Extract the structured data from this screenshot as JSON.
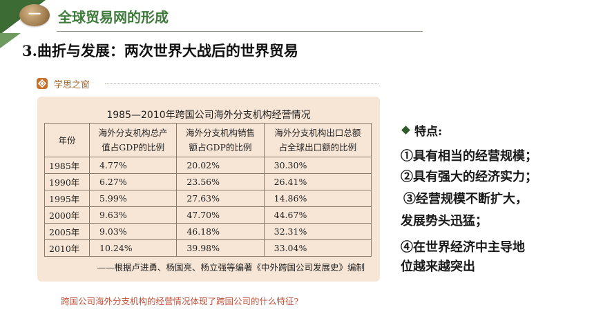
{
  "header": {
    "badge": "一",
    "section_title": "全球贸易网的形成",
    "page_title": "3.曲折与发展：两次世界大战后的世界贸易"
  },
  "window": {
    "icon": "lattice-window-icon",
    "label": "学思之窗"
  },
  "table": {
    "title": "1985—2010年跨国公司海外分支机构经营情况",
    "headers": [
      [
        "年份"
      ],
      [
        "海外分支机构总产",
        "值占GDP的比例"
      ],
      [
        "海外分支机构销售",
        "额占GDP的比例"
      ],
      [
        "海外分支机构出口总额",
        "占全球出口额的比例"
      ]
    ],
    "rows": [
      [
        "1985年",
        "4.77%",
        "20.02%",
        "30.30%"
      ],
      [
        "1990年",
        "6.27%",
        "23.56%",
        "26.41%"
      ],
      [
        "1995年",
        "5.99%",
        "27.63%",
        "14.86%"
      ],
      [
        "2000年",
        "9.63%",
        "47.70%",
        "44.67%"
      ],
      [
        "2005年",
        "9.03%",
        "46.18%",
        "32.31%"
      ],
      [
        "2010年",
        "10.24%",
        "39.98%",
        "33.04%"
      ]
    ],
    "source": "——根据卢进勇、杨国亮、杨立强等编著《中外跨国公司发展史》编制"
  },
  "question": "跨国公司海外分支机构的经营情况体现了跨国公司的什么特征?",
  "features": {
    "title": "特点:",
    "items": [
      "①具有相当的经营规模；",
      "②具有强大的经济实力；",
      "③经营规模不断扩大，",
      "发展势头迅猛；",
      "④在世界经济中主导地",
      "位越来越突出"
    ]
  },
  "colors": {
    "green_dark": "#3d6b34",
    "green_title": "#3e7a3a",
    "panel_bg": "#f7e6d6",
    "question": "#c0503a"
  }
}
